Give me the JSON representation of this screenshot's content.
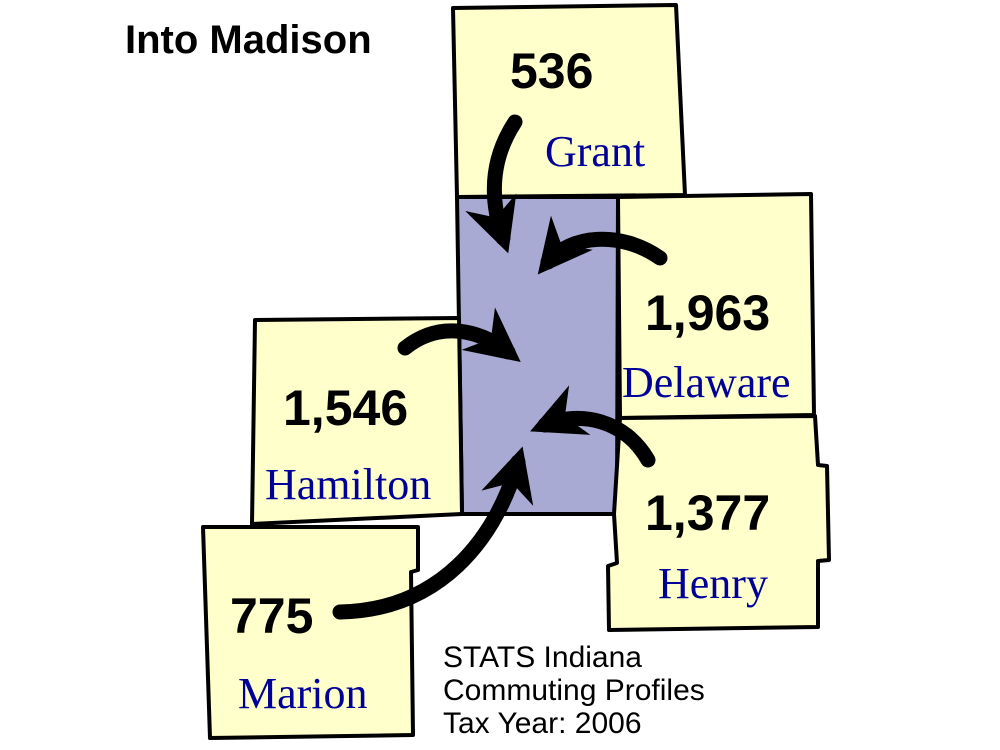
{
  "title": "Into Madison",
  "destination": {
    "name": "Madison",
    "color": "#a9aad3"
  },
  "county_color": "#ffffcc",
  "label_color": "#000099",
  "counties": [
    {
      "name": "Grant",
      "commuters": "536"
    },
    {
      "name": "Delaware",
      "commuters": "1,963"
    },
    {
      "name": "Hamilton",
      "commuters": "1,546"
    },
    {
      "name": "Henry",
      "commuters": "1,377"
    },
    {
      "name": "Marion",
      "commuters": "775"
    }
  ],
  "source": {
    "line1": "STATS Indiana",
    "line2": "Commuting Profiles",
    "line3": "Tax Year: 2006"
  }
}
